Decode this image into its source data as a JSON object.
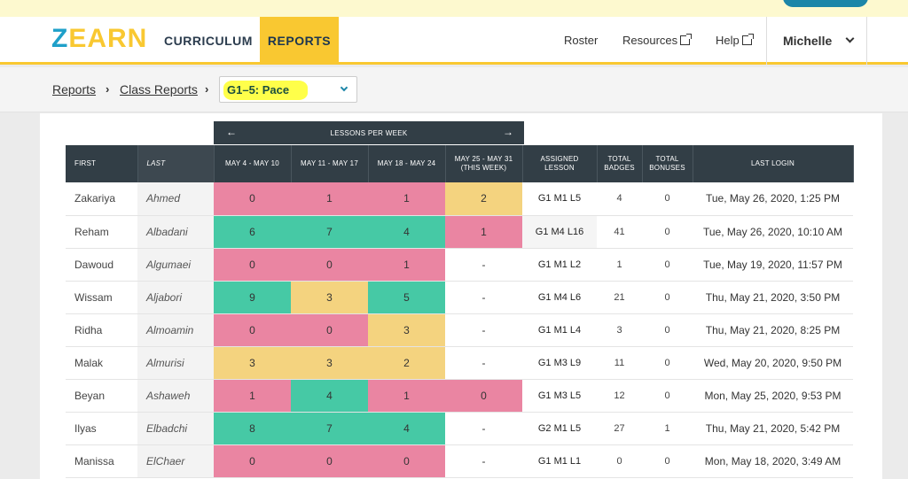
{
  "nav": {
    "logo_z": "Z",
    "logo_rest": "EARN",
    "tabs": [
      "CURRICULUM",
      "REPORTS"
    ],
    "roster": "Roster",
    "resources": "Resources",
    "help": "Help",
    "user": "Michelle"
  },
  "breadcrumb": {
    "items": [
      "Reports",
      "Class Reports"
    ],
    "select_value": "G1–5: Pace"
  },
  "table": {
    "group_header": "LESSONS PER WEEK",
    "headers": [
      "FIRST",
      "LAST",
      "MAY 4 - MAY 10",
      "MAY 11 - MAY 17",
      "MAY 18 - MAY 24",
      "MAY 25 - MAY 31 (THIS WEEK)",
      "ASSIGNED LESSON",
      "TOTAL BADGES",
      "TOTAL BONUSES",
      "LAST LOGIN"
    ],
    "rows": [
      {
        "first": "Zakariya",
        "last": "Ahmed",
        "weeks": [
          {
            "v": "0",
            "c": "red"
          },
          {
            "v": "1",
            "c": "red"
          },
          {
            "v": "1",
            "c": "red"
          },
          {
            "v": "2",
            "c": "yellow"
          }
        ],
        "lesson": "G1 M1 L5",
        "badges": "4",
        "bonuses": "0",
        "login": "Tue, May 26, 2020, 1:25 PM"
      },
      {
        "first": "Reham",
        "last": "Albadani",
        "weeks": [
          {
            "v": "6",
            "c": "green"
          },
          {
            "v": "7",
            "c": "green"
          },
          {
            "v": "4",
            "c": "green"
          },
          {
            "v": "1",
            "c": "red"
          }
        ],
        "lesson": "G1 M4 L16",
        "badges": "41",
        "bonuses": "0",
        "login": "Tue, May 26, 2020, 10:10 AM"
      },
      {
        "first": "Dawoud",
        "last": "Algumaei",
        "weeks": [
          {
            "v": "0",
            "c": "red"
          },
          {
            "v": "0",
            "c": "red"
          },
          {
            "v": "1",
            "c": "red"
          },
          {
            "v": "-",
            "c": "none"
          }
        ],
        "lesson": "G1 M1 L2",
        "badges": "1",
        "bonuses": "0",
        "login": "Tue, May 19, 2020, 11:57 PM"
      },
      {
        "first": "Wissam",
        "last": "Aljabori",
        "weeks": [
          {
            "v": "9",
            "c": "green"
          },
          {
            "v": "3",
            "c": "yellow"
          },
          {
            "v": "5",
            "c": "green"
          },
          {
            "v": "-",
            "c": "none"
          }
        ],
        "lesson": "G1 M4 L6",
        "badges": "21",
        "bonuses": "0",
        "login": "Thu, May 21, 2020, 3:50 PM"
      },
      {
        "first": "Ridha",
        "last": "Almoamin",
        "weeks": [
          {
            "v": "0",
            "c": "red"
          },
          {
            "v": "0",
            "c": "red"
          },
          {
            "v": "3",
            "c": "yellow"
          },
          {
            "v": "-",
            "c": "none"
          }
        ],
        "lesson": "G1 M1 L4",
        "badges": "3",
        "bonuses": "0",
        "login": "Thu, May 21, 2020, 8:25 PM"
      },
      {
        "first": "Malak",
        "last": "Almurisi",
        "weeks": [
          {
            "v": "3",
            "c": "yellow"
          },
          {
            "v": "3",
            "c": "yellow"
          },
          {
            "v": "2",
            "c": "yellow"
          },
          {
            "v": "-",
            "c": "none"
          }
        ],
        "lesson": "G1 M3 L9",
        "badges": "11",
        "bonuses": "0",
        "login": "Wed, May 20, 2020, 9:50 PM"
      },
      {
        "first": "Beyan",
        "last": "Ashaweh",
        "weeks": [
          {
            "v": "1",
            "c": "red"
          },
          {
            "v": "4",
            "c": "green"
          },
          {
            "v": "1",
            "c": "red"
          },
          {
            "v": "0",
            "c": "red"
          }
        ],
        "lesson": "G1 M3 L5",
        "badges": "12",
        "bonuses": "0",
        "login": "Mon, May 25, 2020, 9:53 PM"
      },
      {
        "first": "Ilyas",
        "last": "Elbadchi",
        "weeks": [
          {
            "v": "8",
            "c": "green"
          },
          {
            "v": "7",
            "c": "green"
          },
          {
            "v": "4",
            "c": "green"
          },
          {
            "v": "-",
            "c": "none"
          }
        ],
        "lesson": "G2 M1 L5",
        "badges": "27",
        "bonuses": "1",
        "login": "Thu, May 21, 2020, 5:42 PM"
      },
      {
        "first": "Manissa",
        "last": "ElChaer",
        "weeks": [
          {
            "v": "0",
            "c": "red"
          },
          {
            "v": "0",
            "c": "red"
          },
          {
            "v": "0",
            "c": "red"
          },
          {
            "v": "-",
            "c": "none"
          }
        ],
        "lesson": "G1 M1 L1",
        "badges": "0",
        "bonuses": "0",
        "login": "Mon, May 18, 2020, 3:49 AM"
      }
    ]
  },
  "colors": {
    "brand_blue": "#1fa0c9",
    "brand_yellow": "#f9c831",
    "pace_red": "#ea85a2",
    "pace_green": "#46c9a5",
    "pace_yellow": "#f4d37f",
    "header_dark": "#323e46"
  }
}
